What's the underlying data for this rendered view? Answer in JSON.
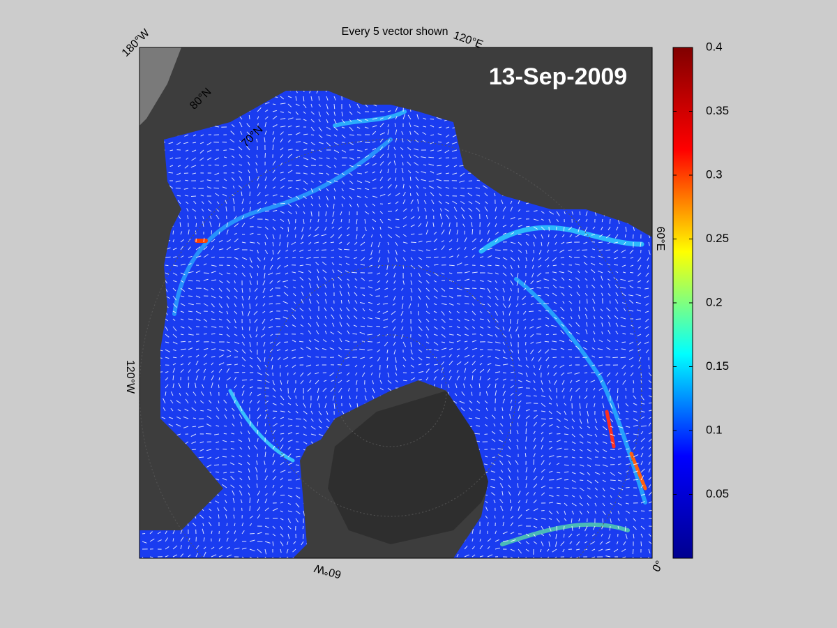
{
  "map": {
    "title": "Every 5 vector shown",
    "date_label": "13-Sep-2009",
    "longitude_labels": [
      "180°W",
      "120°E",
      "60°E",
      "0°",
      "60°W",
      "120°W"
    ],
    "latitude_labels": [
      "80°N",
      "70°N"
    ]
  },
  "colorbar": {
    "colormap": "jet",
    "lim": [
      0,
      0.4
    ],
    "ticks": [
      0.05,
      0.1,
      0.15,
      0.2,
      0.25,
      0.3,
      0.35,
      0.4
    ]
  }
}
